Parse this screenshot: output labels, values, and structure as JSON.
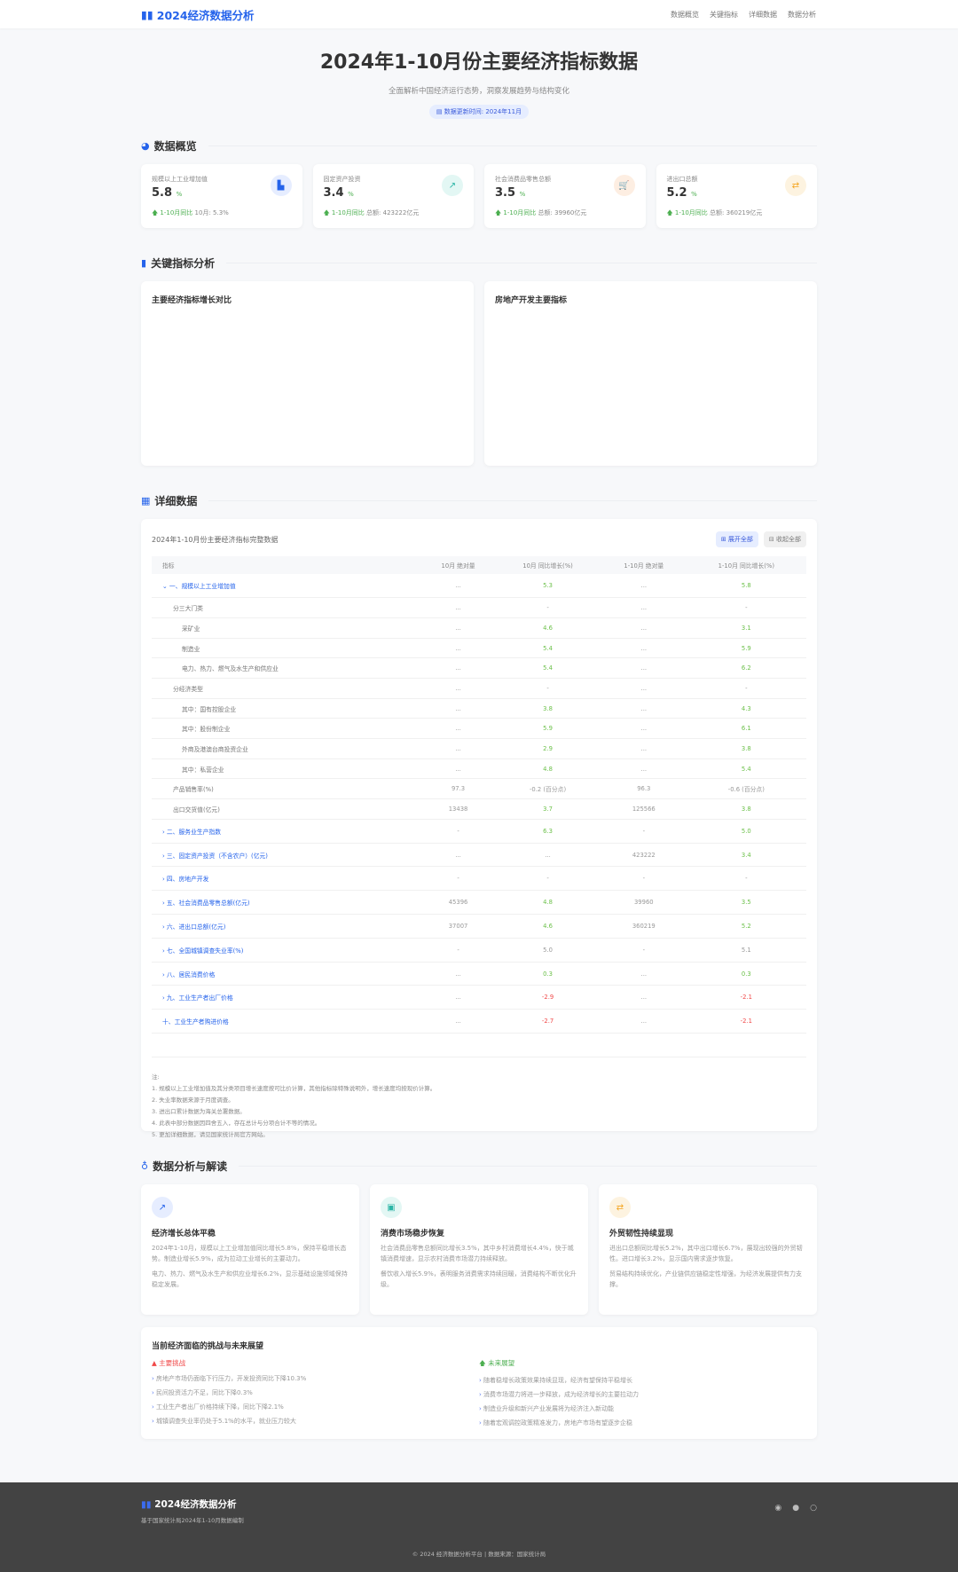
{
  "nav": {
    "logo": "2024经济数据分析",
    "links": [
      "数据概览",
      "关键指标",
      "详细数据",
      "数据分析"
    ]
  },
  "hero": {
    "title": "2024年1-10月份主要经济指标数据",
    "subtitle": "全面解析中国经济运行态势，洞察发展趋势与结构变化",
    "badge": "数据更新时间: 2024年11月"
  },
  "overview": {
    "title": "数据概览",
    "cards": [
      {
        "label": "规模以上工业增加值",
        "value": "5.8",
        "unit": "%",
        "trend": "1-10月同比",
        "extra": "10月: 5.3%",
        "icon": "factory-icon",
        "color": "#2563eb",
        "bg": "#e6edff"
      },
      {
        "label": "固定资产投资",
        "value": "3.4",
        "unit": "%",
        "trend": "1-10月同比",
        "extra": "总额: 423222亿元",
        "icon": "chart-line-icon",
        "color": "#2bb5a6",
        "bg": "#e3f7f4"
      },
      {
        "label": "社会消费品零售总额",
        "value": "3.5",
        "unit": "%",
        "trend": "1-10月同比",
        "extra": "总额: 39960亿元",
        "icon": "cart-icon",
        "color": "#f2782b",
        "bg": "#fdeee2"
      },
      {
        "label": "进出口总额",
        "value": "5.2",
        "unit": "%",
        "trend": "1-10月同比",
        "extra": "总额: 360219亿元",
        "icon": "exchange-icon",
        "color": "#f5a623",
        "bg": "#fdf3e0"
      }
    ]
  },
  "key": {
    "title": "关键指标分析",
    "charts": [
      "主要经济指标增长对比",
      "房地产开发主要指标"
    ]
  },
  "detail": {
    "title": "详细数据",
    "table_title": "2024年1-10月份主要经济指标完整数据",
    "expand": "展开全部",
    "collapse": "收起全部",
    "columns": [
      "指标",
      "10月 绝对量",
      "10月 同比增长(%)",
      "1-10月 绝对量",
      "1-10月 同比增长(%)"
    ],
    "rows": [
      {
        "t": "grp",
        "icon": "chevron-down-icon",
        "c": [
          "一、规模以上工业增加值",
          "...",
          "5.3",
          "...",
          "5.8"
        ]
      },
      {
        "t": "l1",
        "c": [
          "分三大门类",
          "...",
          "-",
          "...",
          "-"
        ]
      },
      {
        "t": "l2",
        "c": [
          "采矿业",
          "...",
          "4.6",
          "...",
          "3.1"
        ]
      },
      {
        "t": "l2",
        "c": [
          "制造业",
          "...",
          "5.4",
          "...",
          "5.9"
        ]
      },
      {
        "t": "l2",
        "c": [
          "电力、热力、燃气及水生产和供应业",
          "...",
          "5.4",
          "...",
          "6.2"
        ]
      },
      {
        "t": "l1",
        "c": [
          "分经济类型",
          "...",
          "-",
          "...",
          "-"
        ]
      },
      {
        "t": "l2",
        "c": [
          "其中：国有控股企业",
          "...",
          "3.8",
          "...",
          "4.3"
        ]
      },
      {
        "t": "l2",
        "c": [
          "其中：股份制企业",
          "...",
          "5.9",
          "...",
          "6.1"
        ]
      },
      {
        "t": "l2",
        "c": [
          "外商及港澳台商投资企业",
          "...",
          "2.9",
          "...",
          "3.8"
        ]
      },
      {
        "t": "l2",
        "c": [
          "其中：私营企业",
          "...",
          "4.8",
          "...",
          "5.4"
        ]
      },
      {
        "t": "l1",
        "c": [
          "产品销售率(%)",
          "97.3",
          "-0.2 (百分点)",
          "96.3",
          "-0.6 (百分点)"
        ]
      },
      {
        "t": "l1",
        "c": [
          "出口交货值(亿元)",
          "13438",
          "3.7",
          "125566",
          "3.8"
        ]
      },
      {
        "t": "grp",
        "icon": "chevron-right-icon",
        "c": [
          "二、服务业生产指数",
          "-",
          "6.3",
          "-",
          "5.0"
        ]
      },
      {
        "t": "grp",
        "icon": "chevron-right-icon",
        "c": [
          "三、固定资产投资（不含农户）(亿元)",
          "...",
          "...",
          "423222",
          "3.4"
        ]
      },
      {
        "t": "grp",
        "icon": "chevron-right-icon",
        "c": [
          "四、房地产开发",
          "-",
          "-",
          "-",
          "-"
        ]
      },
      {
        "t": "grp",
        "icon": "chevron-right-icon",
        "c": [
          "五、社会消费品零售总额(亿元)",
          "45396",
          "4.8",
          "39960",
          "3.5"
        ]
      },
      {
        "t": "grp",
        "icon": "chevron-right-icon",
        "c": [
          "六、进出口总额(亿元)",
          "37007",
          "4.6",
          "360219",
          "5.2"
        ]
      },
      {
        "t": "grp",
        "icon": "chevron-right-icon",
        "c": [
          "七、全国城镇调查失业率(%)",
          "-",
          "5.0",
          "-",
          "5.1"
        ]
      },
      {
        "t": "grp",
        "icon": "chevron-right-icon",
        "c": [
          "八、居民消费价格",
          "...",
          "0.3",
          "...",
          "0.3"
        ]
      },
      {
        "t": "grp",
        "icon": "chevron-right-icon",
        "c": [
          "九、工业生产者出厂价格",
          "...",
          "-2.9",
          "...",
          "-2.1"
        ]
      },
      {
        "t": "grp",
        "icon": "",
        "c": [
          "十、工业生产者购进价格",
          "...",
          "-2.7",
          "...",
          "-2.1"
        ]
      }
    ],
    "notes_title": "注:",
    "notes": [
      "1. 规模以上工业增加值及其分类项目增长速度按可比价计算，其他指标除特殊说明外，增长速度均按现价计算。",
      "2. 失业率数据来源于月度调查。",
      "3. 进出口累计数据为海关总署数据。",
      "4. 此表中部分数据因四舍五入，存在总计与分项合计不等的情况。",
      "5. 更加详细数据，请见国家统计局官方网站。"
    ]
  },
  "analysis": {
    "title": "数据分析与解读",
    "cards": [
      {
        "icon": "chart-line-icon",
        "color": "#2563eb",
        "bg": "#e6edff",
        "title": "经济增长总体平稳",
        "p": [
          "2024年1-10月，规模以上工业增加值同比增长5.8%，保持平稳增长态势。制造业增长5.9%，成为拉动工业增长的主要动力。",
          "电力、热力、燃气及水生产和供应业增长6.2%，显示基础设施领域保持稳定发展。"
        ]
      },
      {
        "icon": "shopping-bag-icon",
        "color": "#2bb5a6",
        "bg": "#e3f7f4",
        "title": "消费市场稳步恢复",
        "p": [
          "社会消费品零售总额同比增长3.5%，其中乡村消费增长4.4%，快于城镇消费增速，显示农村消费市场潜力持续释放。",
          "餐饮收入增长5.9%，表明服务消费需求持续回暖，消费结构不断优化升级。"
        ]
      },
      {
        "icon": "exchange-icon",
        "color": "#f5a623",
        "bg": "#fdf3e0",
        "title": "外贸韧性持续显现",
        "p": [
          "进出口总额同比增长5.2%，其中出口增长6.7%，展现出较强的外贸韧性。进口增长3.2%，显示国内需求逐步恢复。",
          "贸易结构持续优化，产业链供应链稳定性增强，为经济发展提供有力支撑。"
        ]
      }
    ],
    "challenge": {
      "title": "当前经济面临的挑战与未来展望",
      "risk_title": "主要挑战",
      "risks": [
        "房地产市场仍面临下行压力，开发投资同比下降10.3%",
        "民间投资活力不足，同比下降0.3%",
        "工业生产者出厂价格持续下降，同比下降2.1%",
        "城镇调查失业率仍处于5.1%的水平，就业压力较大"
      ],
      "outlook_title": "未来展望",
      "outlooks": [
        "随着稳增长政策效果持续显现，经济有望保持平稳增长",
        "消费市场潜力将进一步释放，成为经济增长的主要拉动力",
        "制造业升级和新兴产业发展将为经济注入新动能",
        "随着宏观调控政策精准发力，房地产市场有望逐步企稳"
      ]
    }
  },
  "footer": {
    "logo": "2024经济数据分析",
    "desc": "基于国家统计局2024年1-10月数据编制",
    "copyright": "© 2024 经济数据分析平台 | 数据来源：国家统计局",
    "icons": [
      "weibo-icon",
      "wechat-icon",
      "github-icon"
    ]
  }
}
